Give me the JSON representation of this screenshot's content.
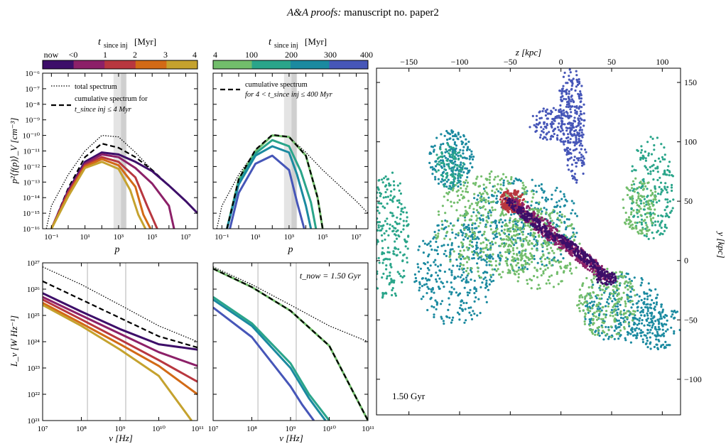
{
  "header": {
    "journal": "A&A proofs:",
    "manuscript": "manuscript no. paper2"
  },
  "colorbars": {
    "left": {
      "label_t": "t",
      "label_sub": "since inj",
      "label_unit": "[Myr]",
      "ticks": [
        "now",
        "<0",
        "1",
        "2",
        "3",
        "4"
      ],
      "colors": [
        "#3d0e69",
        "#8c2068",
        "#b8373f",
        "#d26a16",
        "#c5a22e"
      ]
    },
    "middle": {
      "label_t": "t",
      "label_sub": "since inj",
      "label_unit": "[Myr]",
      "ticks": [
        "4",
        "100",
        "200",
        "300",
        "400"
      ],
      "colors": [
        "#72bd6b",
        "#2aa58a",
        "#1b8aa0",
        "#4656b8"
      ]
    }
  },
  "chart_data": [
    {
      "type": "line",
      "panel": "top-left",
      "xlabel": "p",
      "ylabel": "p²⟨f(p)⟩_V [cm⁻³]",
      "xscale": "log",
      "yscale": "log",
      "xlim": [
        0.03,
        50000000
      ],
      "ylim": [
        1e-16,
        1e-06
      ],
      "xticks": [
        "10⁻¹",
        "10¹",
        "10³",
        "10⁵",
        "10⁷"
      ],
      "yticks": [
        "10⁻¹⁶",
        "10⁻¹⁵",
        "10⁻¹⁴",
        "10⁻¹³",
        "10⁻¹²",
        "10⁻¹¹",
        "10⁻¹⁰",
        "10⁻⁹",
        "10⁻⁸",
        "10⁻⁷",
        "10⁻⁶"
      ],
      "legend": [
        "total spectrum",
        "cumulative spectrum for",
        "t_since inj ≤ 4 Myr"
      ],
      "shaded_x_bands": [
        [
          500,
          3000
        ],
        [
          1400,
          2800
        ]
      ],
      "series": [
        {
          "style": "dotted",
          "color": "#000000",
          "x": [
            0.05,
            0.1,
            1,
            10,
            100,
            1000,
            10000,
            100000,
            1000000,
            10000000,
            50000000
          ],
          "y": [
            1e-16,
            3e-15,
            3e-13,
            1e-11,
            1e-10,
            8e-11,
            8e-12,
            6e-13,
            6e-14,
            6e-15,
            1e-15
          ]
        },
        {
          "style": "dashed",
          "color": "#000000",
          "x": [
            0.1,
            1,
            10,
            100,
            1000,
            10000,
            100000,
            1000000,
            10000000,
            50000000
          ],
          "y": [
            1e-16,
            4e-14,
            4e-12,
            3e-11,
            1.6e-11,
            4e-12,
            6e-13,
            6e-14,
            6e-15,
            1e-15
          ]
        },
        {
          "style": "solid",
          "color": "#3d0e69",
          "x": [
            0.1,
            1,
            10,
            100,
            1000,
            10000,
            100000,
            1000000,
            10000000,
            50000000
          ],
          "y": [
            1e-16,
            3e-14,
            2e-12,
            8e-12,
            6e-12,
            2e-12,
            5e-13,
            6e-14,
            6e-15,
            1e-15
          ]
        },
        {
          "style": "solid",
          "color": "#8c2068",
          "x": [
            0.1,
            1,
            10,
            100,
            1000,
            10000,
            100000,
            1000000,
            2000000
          ],
          "y": [
            1e-16,
            2.5e-14,
            1.5e-12,
            6e-12,
            4e-12,
            8e-13,
            8e-14,
            3e-15,
            1e-16
          ]
        },
        {
          "style": "solid",
          "color": "#b8373f",
          "x": [
            0.1,
            1,
            10,
            100,
            1000,
            10000,
            50000,
            200000
          ],
          "y": [
            1e-16,
            2e-14,
            1.2e-12,
            4e-12,
            2e-12,
            2e-13,
            3e-15,
            1e-16
          ]
        },
        {
          "style": "solid",
          "color": "#d26a16",
          "x": [
            0.1,
            1,
            10,
            100,
            1000,
            10000,
            30000,
            80000
          ],
          "y": [
            1e-16,
            1.6e-14,
            1e-12,
            3e-12,
            1.2e-12,
            5e-14,
            8e-16,
            1e-16
          ]
        },
        {
          "style": "solid",
          "color": "#c5a22e",
          "x": [
            0.1,
            1,
            10,
            100,
            1000,
            5000,
            15000,
            40000
          ],
          "y": [
            1e-16,
            1.2e-14,
            8e-13,
            2e-12,
            7e-13,
            3e-14,
            8e-16,
            1e-16
          ]
        }
      ]
    },
    {
      "type": "line",
      "panel": "top-middle",
      "xlabel": "p",
      "xscale": "log",
      "yscale": "log",
      "xlim": [
        0.03,
        50000000
      ],
      "ylim": [
        1e-16,
        1e-06
      ],
      "xticks": [
        "10⁻¹",
        "10¹",
        "10³",
        "10⁵",
        "10⁷"
      ],
      "legend": [
        "cumulative spectrum",
        "for 4 < t_since inj ≤ 400 Myr"
      ],
      "shaded_x_bands": [
        [
          500,
          3000
        ],
        [
          1400,
          2800
        ]
      ],
      "series": [
        {
          "style": "dotted",
          "color": "#000000",
          "x": [
            0.05,
            0.1,
            1,
            10,
            100,
            1000,
            10000,
            100000,
            1000000,
            10000000,
            50000000
          ],
          "y": [
            1e-16,
            3e-15,
            3e-13,
            1e-11,
            1e-10,
            8e-11,
            8e-12,
            6e-13,
            6e-14,
            6e-15,
            1e-15
          ]
        },
        {
          "style": "solid",
          "color": "#72bd6b",
          "x": [
            0.2,
            1,
            10,
            100,
            1000,
            10000,
            50000,
            100000
          ],
          "y": [
            1e-16,
            1.5e-13,
            1e-11,
            1e-10,
            8e-11,
            5e-12,
            1e-14,
            1e-16
          ]
        },
        {
          "style": "solid",
          "color": "#2aa58a",
          "x": [
            0.2,
            1,
            10,
            100,
            1000,
            5000,
            20000,
            40000
          ],
          "y": [
            1e-16,
            1e-13,
            7e-12,
            5e-11,
            2e-11,
            5e-13,
            5e-15,
            1e-16
          ]
        },
        {
          "style": "solid",
          "color": "#1b8aa0",
          "x": [
            0.2,
            1,
            10,
            100,
            1000,
            3000,
            10000,
            20000
          ],
          "y": [
            1e-16,
            7e-14,
            5e-12,
            2e-11,
            8e-12,
            3e-13,
            3e-15,
            1e-16
          ]
        },
        {
          "style": "solid",
          "color": "#4656b8",
          "x": [
            0.3,
            1,
            10,
            100,
            1000,
            3000,
            8000
          ],
          "y": [
            1e-16,
            2e-14,
            1.5e-12,
            5e-12,
            6e-13,
            5e-15,
            1e-16
          ]
        },
        {
          "style": "dashed",
          "color": "#000000",
          "x": [
            0.2,
            1,
            10,
            100,
            1000,
            10000,
            50000,
            100000
          ],
          "y": [
            1e-16,
            1.5e-13,
            1.2e-11,
            1.1e-10,
            8e-11,
            5e-12,
            1e-14,
            1e-16
          ]
        }
      ]
    },
    {
      "type": "line",
      "panel": "bottom-left",
      "xlabel": "ν [Hz]",
      "ylabel": "L_ν [W Hz⁻¹]",
      "xscale": "log",
      "yscale": "log",
      "xlim": [
        10000000,
        100000000000
      ],
      "ylim": [
        1e+21,
        1e+27
      ],
      "xticks": [
        "10⁷",
        "10⁸",
        "10⁹",
        "10¹⁰",
        "10¹¹"
      ],
      "yticks": [
        "10²¹",
        "10²²",
        "10²³",
        "10²⁴",
        "10²⁵",
        "10²⁶",
        "10²⁷"
      ],
      "vlines": [
        144000000,
        1400000000
      ],
      "series": [
        {
          "style": "dotted",
          "color": "#000000",
          "x": [
            10000000,
            100000000,
            1000000000,
            10000000000,
            100000000000
          ],
          "y": [
            7e+26,
            1.5e+26,
            2.5e+25,
            4e+24,
            1e+24
          ]
        },
        {
          "style": "dashed",
          "color": "#000000",
          "x": [
            10000000,
            100000000,
            1000000000,
            10000000000,
            100000000000
          ],
          "y": [
            2e+26,
            4e+25,
            8e+24,
            1.6e+24,
            6e+23
          ]
        },
        {
          "style": "solid",
          "color": "#3d0e69",
          "x": [
            10000000,
            100000000,
            1000000000,
            10000000000,
            100000000000
          ],
          "y": [
            7e+25,
            1.4e+25,
            3e+24,
            8e+23,
            5e+23
          ]
        },
        {
          "style": "solid",
          "color": "#8c2068",
          "x": [
            10000000,
            100000000,
            1000000000,
            10000000000,
            100000000000
          ],
          "y": [
            5e+25,
            1e+25,
            2e+24,
            4e+23,
            1.2e+23
          ]
        },
        {
          "style": "solid",
          "color": "#b8373f",
          "x": [
            10000000,
            100000000,
            1000000000,
            10000000000,
            100000000000
          ],
          "y": [
            4e+25,
            7e+24,
            1.2e+24,
            2e+23,
            3e+22
          ]
        },
        {
          "style": "solid",
          "color": "#d26a16",
          "x": [
            10000000,
            100000000,
            1000000000,
            10000000000,
            100000000000
          ],
          "y": [
            3e+25,
            5e+24,
            8e+23,
            1.2e+23,
            1e+22
          ]
        },
        {
          "style": "solid",
          "color": "#c5a22e",
          "x": [
            10000000,
            100000000,
            1000000000,
            10000000000,
            70000000000
          ],
          "y": [
            2.5e+25,
            4e+24,
            5e+23,
            5e+22,
            1e+21
          ]
        }
      ]
    },
    {
      "type": "line",
      "panel": "bottom-middle",
      "xlabel": "ν [Hz]",
      "annotation": "t_now = 1.50 Gyr",
      "xscale": "log",
      "yscale": "log",
      "xlim": [
        10000000,
        100000000000
      ],
      "ylim": [
        1e+21,
        1e+27
      ],
      "xticks": [
        "10⁷",
        "10⁸",
        "10⁹",
        "10¹⁰",
        "10¹¹"
      ],
      "vlines": [
        144000000,
        1400000000
      ],
      "series": [
        {
          "style": "dotted",
          "color": "#000000",
          "x": [
            10000000,
            100000000,
            1000000000,
            10000000000,
            100000000000
          ],
          "y": [
            7e+26,
            1.5e+26,
            2.5e+25,
            4e+24,
            1e+24
          ]
        },
        {
          "style": "solid",
          "color": "#72bd6b",
          "x": [
            10000000,
            100000000,
            1000000000,
            10000000000,
            100000000000
          ],
          "y": [
            6e+26,
            1.2e+26,
            1.5e+25,
            7e+23,
            1e+21
          ]
        },
        {
          "style": "dashed",
          "color": "#000000",
          "x": [
            10000000,
            100000000,
            1000000000,
            10000000000,
            100000000000
          ],
          "y": [
            6e+26,
            1.2e+26,
            1.5e+25,
            7e+23,
            1e+21
          ]
        },
        {
          "style": "solid",
          "color": "#2aa58a",
          "x": [
            10000000,
            100000000,
            1000000000,
            3000000000,
            10000000000
          ],
          "y": [
            5e+25,
            5e+24,
            1.5e+23,
            1e+22,
            1e+21
          ]
        },
        {
          "style": "solid",
          "color": "#1b8aa0",
          "x": [
            10000000,
            100000000,
            1000000000,
            3000000000,
            8000000000
          ],
          "y": [
            4e+25,
            4e+24,
            1e+23,
            7e+21,
            1e+21
          ]
        },
        {
          "style": "solid",
          "color": "#4656b8",
          "x": [
            10000000,
            100000000,
            1000000000,
            2000000000,
            4000000000
          ],
          "y": [
            2e+25,
            1.5e+24,
            2e+22,
            4e+21,
            1e+21
          ]
        }
      ]
    },
    {
      "type": "scatter",
      "panel": "right",
      "xlabel": "z [kpc]",
      "ylabel": "y [kpc]",
      "annotation": "1.50 Gyr",
      "xlim": [
        -182,
        118
      ],
      "ylim": [
        -130,
        162
      ],
      "xticks": [
        "−150",
        "−100",
        "−50",
        "0",
        "50",
        "100"
      ],
      "yticks": [
        "150",
        "100",
        "50",
        "0",
        "−50",
        "−100"
      ],
      "colorscale": "time since injection (see colorbars)"
    }
  ]
}
